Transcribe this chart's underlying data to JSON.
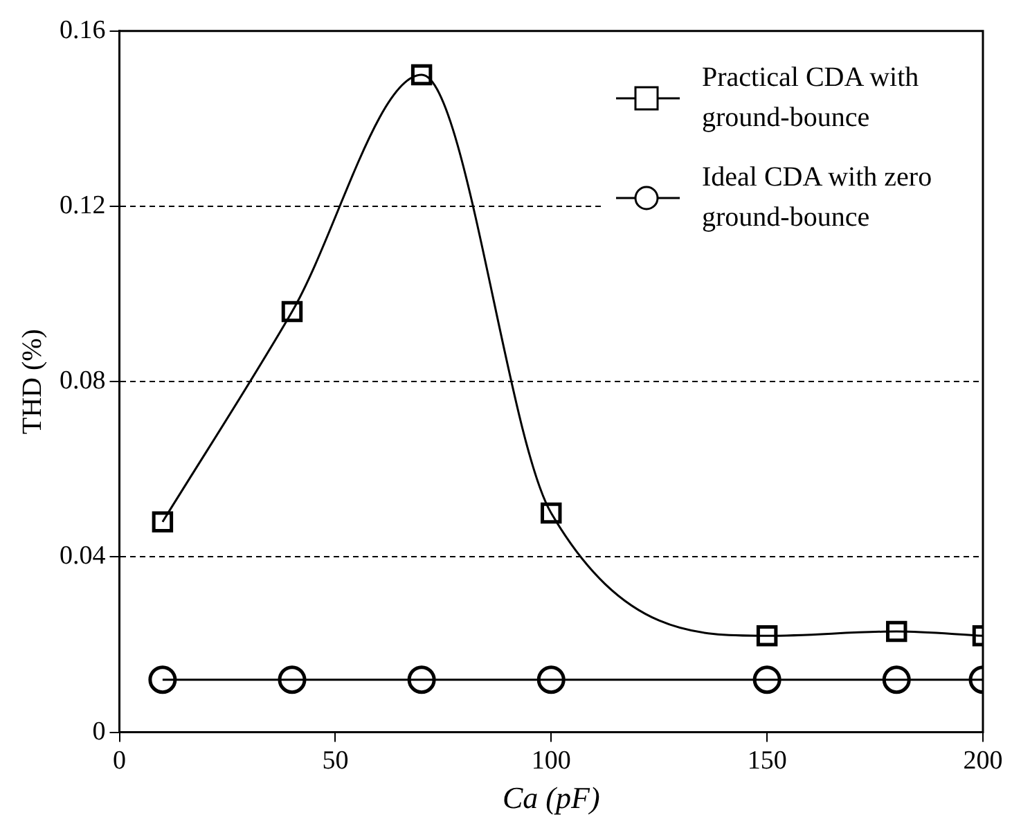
{
  "chart_data": {
    "type": "line",
    "xlabel": "Ca (pF)",
    "ylabel": "THD (%)",
    "x": [
      10,
      40,
      70,
      100,
      150,
      180,
      200
    ],
    "series": [
      {
        "name": "Practical CDA with ground-bounce",
        "color": "#000000",
        "marker": "square",
        "values": [
          0.048,
          0.096,
          0.15,
          0.05,
          0.022,
          0.023,
          0.022
        ]
      },
      {
        "name": "Ideal CDA with zero ground-bounce",
        "color": "#000000",
        "marker": "circle",
        "values": [
          0.012,
          0.012,
          0.012,
          0.012,
          0.012,
          0.012,
          0.012
        ]
      }
    ],
    "xlim": [
      0,
      200
    ],
    "xticks": [
      0,
      50,
      100,
      150,
      200
    ],
    "ylim": [
      0,
      0.16
    ],
    "yticks": [
      0,
      0.04,
      0.08,
      0.12,
      0.16
    ],
    "grid": "y",
    "legend": "top right",
    "line_style": "solid"
  }
}
